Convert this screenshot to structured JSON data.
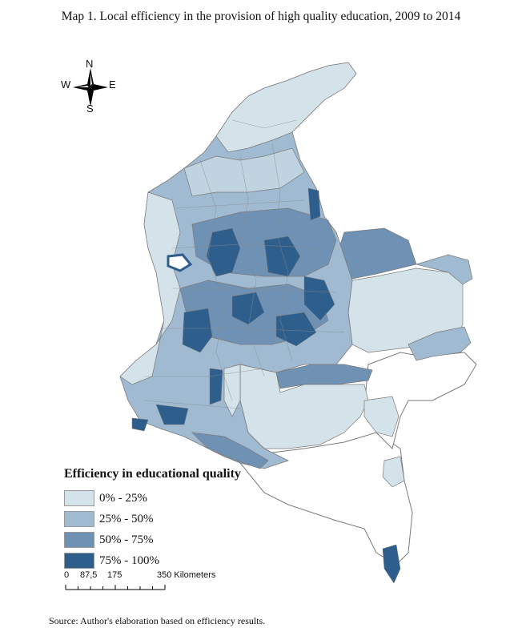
{
  "title": "Map 1. Local efficiency in the provision of high quality education, 2009 to 2014",
  "compass": {
    "north": "N",
    "south": "S",
    "east": "E",
    "west": "W"
  },
  "legend": {
    "title": "Efficiency in educational quality",
    "items": [
      {
        "label": "0% - 25%",
        "color": "#d4e3ea"
      },
      {
        "label": "25% - 50%",
        "color": "#9fbad1"
      },
      {
        "label": "50% - 75%",
        "color": "#6f91b3"
      },
      {
        "label": "75% - 100%",
        "color": "#2e5e8c"
      }
    ]
  },
  "scale": {
    "ticks": [
      "0",
      "87,5",
      "175",
      "350 Kilometers"
    ]
  },
  "source": "Source: Author's elaboration based on efficiency results.",
  "colors": {
    "no_data": "#ffffff",
    "border": "#7a7a7a"
  }
}
